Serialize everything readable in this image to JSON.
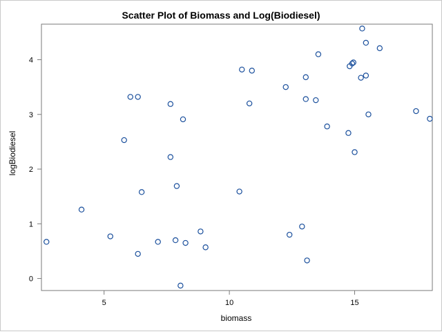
{
  "chart_data": {
    "type": "scatter",
    "title": "Scatter Plot of Biomass and Log(Biodiesel)",
    "xlabel": "biomass",
    "ylabel": "logBiodiesel",
    "xlim": [
      2.5,
      18.1
    ],
    "ylim": [
      -0.22,
      4.65
    ],
    "xticks": [
      5,
      10,
      15
    ],
    "yticks": [
      0,
      1,
      2,
      3,
      4
    ],
    "grid": false,
    "legend": "none",
    "marker_color": "#1a4f9c",
    "points": [
      {
        "x": 2.7,
        "y": 0.67
      },
      {
        "x": 4.1,
        "y": 1.26
      },
      {
        "x": 5.25,
        "y": 0.77
      },
      {
        "x": 5.8,
        "y": 2.53
      },
      {
        "x": 6.05,
        "y": 3.32
      },
      {
        "x": 6.35,
        "y": 3.32
      },
      {
        "x": 6.35,
        "y": 0.45
      },
      {
        "x": 6.5,
        "y": 1.58
      },
      {
        "x": 7.15,
        "y": 0.67
      },
      {
        "x": 7.65,
        "y": 3.19
      },
      {
        "x": 7.65,
        "y": 2.22
      },
      {
        "x": 7.85,
        "y": 0.7
      },
      {
        "x": 7.9,
        "y": 1.69
      },
      {
        "x": 8.05,
        "y": -0.13
      },
      {
        "x": 8.15,
        "y": 2.91
      },
      {
        "x": 8.25,
        "y": 0.65
      },
      {
        "x": 8.85,
        "y": 0.86
      },
      {
        "x": 9.05,
        "y": 0.57
      },
      {
        "x": 10.4,
        "y": 1.59
      },
      {
        "x": 10.5,
        "y": 3.82
      },
      {
        "x": 10.8,
        "y": 3.2
      },
      {
        "x": 10.9,
        "y": 3.8
      },
      {
        "x": 12.25,
        "y": 3.5
      },
      {
        "x": 12.4,
        "y": 0.8
      },
      {
        "x": 12.9,
        "y": 0.95
      },
      {
        "x": 13.05,
        "y": 3.68
      },
      {
        "x": 13.05,
        "y": 3.28
      },
      {
        "x": 13.1,
        "y": 0.33
      },
      {
        "x": 13.45,
        "y": 3.26
      },
      {
        "x": 13.55,
        "y": 4.1
      },
      {
        "x": 13.9,
        "y": 2.78
      },
      {
        "x": 14.75,
        "y": 2.66
      },
      {
        "x": 14.8,
        "y": 3.88
      },
      {
        "x": 14.9,
        "y": 3.93
      },
      {
        "x": 14.95,
        "y": 3.95
      },
      {
        "x": 15.0,
        "y": 2.31
      },
      {
        "x": 15.25,
        "y": 3.67
      },
      {
        "x": 15.3,
        "y": 4.57
      },
      {
        "x": 15.45,
        "y": 4.31
      },
      {
        "x": 15.45,
        "y": 3.71
      },
      {
        "x": 15.55,
        "y": 3.0
      },
      {
        "x": 16.0,
        "y": 4.21
      },
      {
        "x": 17.45,
        "y": 3.06
      },
      {
        "x": 18.0,
        "y": 2.92
      }
    ]
  }
}
